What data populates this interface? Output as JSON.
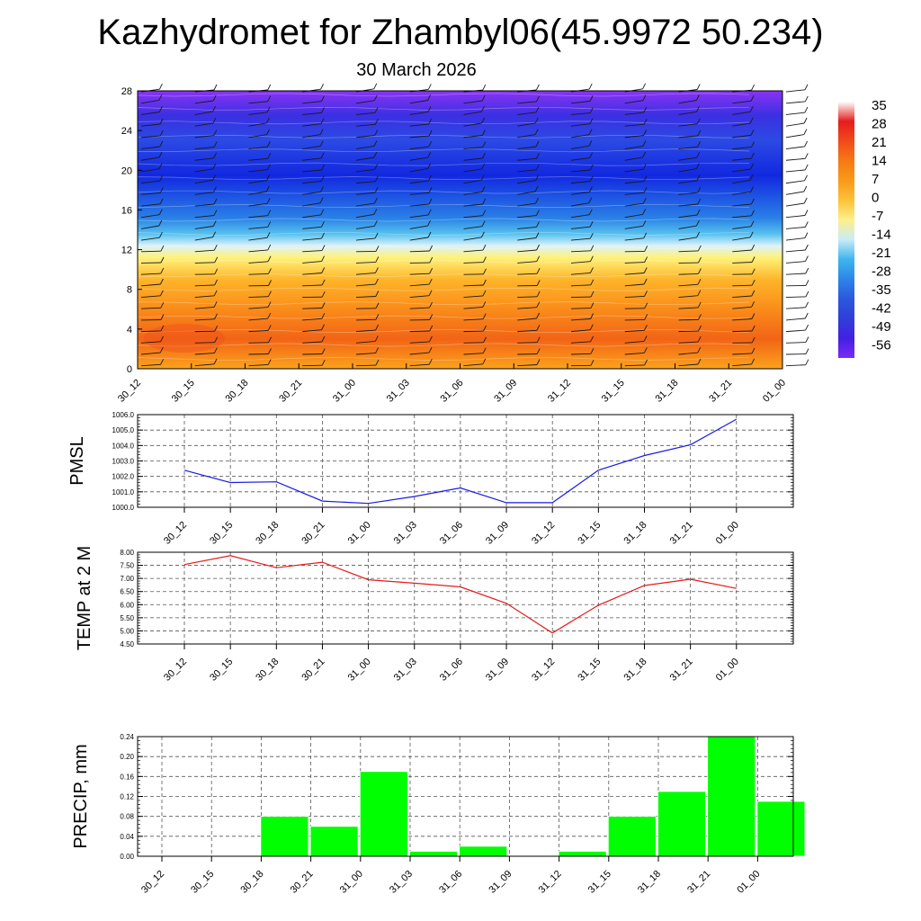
{
  "title": "Kazhydromet for Zhambyl06(45.9972 50.234)",
  "subtitle": "30 March 2026",
  "colors": {
    "pressure_line": "#1a1ae6",
    "temperature_line": "#e61a1a",
    "precip_bar": "#00ff00",
    "grid": "#555555"
  },
  "chart_data": [
    {
      "id": "section",
      "type": "heatmap",
      "description_of_axes": "time vs height",
      "x_ticks": [
        "30_12",
        "30_15",
        "30_18",
        "30_21",
        "31_00",
        "31_03",
        "31_06",
        "31_09",
        "31_12",
        "31_15",
        "31_18",
        "31_21",
        "01_00"
      ],
      "y_ticks": [
        "0",
        "4",
        "8",
        "12",
        "16",
        "20",
        "24",
        "28"
      ],
      "ylim": [
        0,
        28
      ],
      "colorbar_labels": [
        "35",
        "28",
        "21",
        "14",
        "7",
        "0",
        "-7",
        "-14",
        "-21",
        "-28",
        "-35",
        "-42",
        "-49",
        "-56"
      ],
      "colorbar_colors": [
        "#ffffff",
        "#e51d1d",
        "#f24a1a",
        "#f57a14",
        "#f89a1a",
        "#fdc238",
        "#fdf08c",
        "#c8ecf8",
        "#3fb5ee",
        "#2c86e8",
        "#2b58de",
        "#2f3fd8",
        "#4320e4",
        "#7a2af4"
      ],
      "height_profile": [
        {
          "h": 0,
          "color": "#fba31c"
        },
        {
          "h": 3,
          "color": "#f26416"
        },
        {
          "h": 6,
          "color": "#fa8c1a"
        },
        {
          "h": 9,
          "color": "#feb52a"
        },
        {
          "h": 11.2,
          "color": "#fff27a"
        },
        {
          "h": 12.4,
          "color": "#dcf2fa"
        },
        {
          "h": 13.6,
          "color": "#55c0ee"
        },
        {
          "h": 15.2,
          "color": "#2a80e6"
        },
        {
          "h": 17,
          "color": "#1f5be3"
        },
        {
          "h": 19.5,
          "color": "#1228e0"
        },
        {
          "h": 23,
          "color": "#2b4ae3"
        },
        {
          "h": 25.5,
          "color": "#3a30e2"
        },
        {
          "h": 28,
          "color": "#8a33f4"
        }
      ]
    },
    {
      "id": "pmsl",
      "type": "line",
      "ylabel": "PMSL",
      "x_ticks": [
        "30_12",
        "30_15",
        "30_18",
        "30_21",
        "31_00",
        "31_03",
        "31_06",
        "31_09",
        "31_12",
        "31_15",
        "31_18",
        "31_21",
        "01_00"
      ],
      "y_ticks": [
        "1000.0",
        "1001.0",
        "1002.0",
        "1003.0",
        "1004.0",
        "1005.0",
        "1006.0"
      ],
      "ylim": [
        1000,
        1006
      ],
      "values": [
        1002.4,
        1001.6,
        1001.65,
        1000.4,
        1000.25,
        1000.7,
        1001.25,
        1000.3,
        1000.3,
        1002.4,
        1003.35,
        1004.05,
        1005.7
      ],
      "grid": true
    },
    {
      "id": "temp",
      "type": "line",
      "ylabel": "TEMP at 2 M",
      "x_ticks": [
        "30_12",
        "30_15",
        "30_18",
        "30_21",
        "31_00",
        "31_03",
        "31_06",
        "31_09",
        "31_12",
        "31_15",
        "31_18",
        "31_21",
        "01_00"
      ],
      "y_ticks": [
        "4.50",
        "5.00",
        "5.50",
        "6.00",
        "6.50",
        "7.00",
        "7.50",
        "8.00"
      ],
      "ylim": [
        4.5,
        8.0
      ],
      "values": [
        7.53,
        7.87,
        7.41,
        7.62,
        6.95,
        6.82,
        6.68,
        6.05,
        4.92,
        5.98,
        6.73,
        6.97,
        6.62
      ],
      "grid": true
    },
    {
      "id": "precip",
      "type": "bar",
      "ylabel": "PRECIP, mm",
      "categories": [
        "30_12",
        "30_15",
        "30_18",
        "30_21",
        "31_00",
        "31_03",
        "31_06",
        "31_09",
        "31_12",
        "31_15",
        "31_18",
        "31_21",
        "01_00"
      ],
      "y_ticks": [
        "0.00",
        "0.04",
        "0.08",
        "0.12",
        "0.16",
        "0.20",
        "0.24"
      ],
      "ylim": [
        0,
        0.24
      ],
      "values": [
        0,
        0,
        0.08,
        0.06,
        0.17,
        0.01,
        0.02,
        0,
        0.01,
        0.08,
        0.13,
        0.24,
        0.11
      ],
      "grid": true
    }
  ]
}
